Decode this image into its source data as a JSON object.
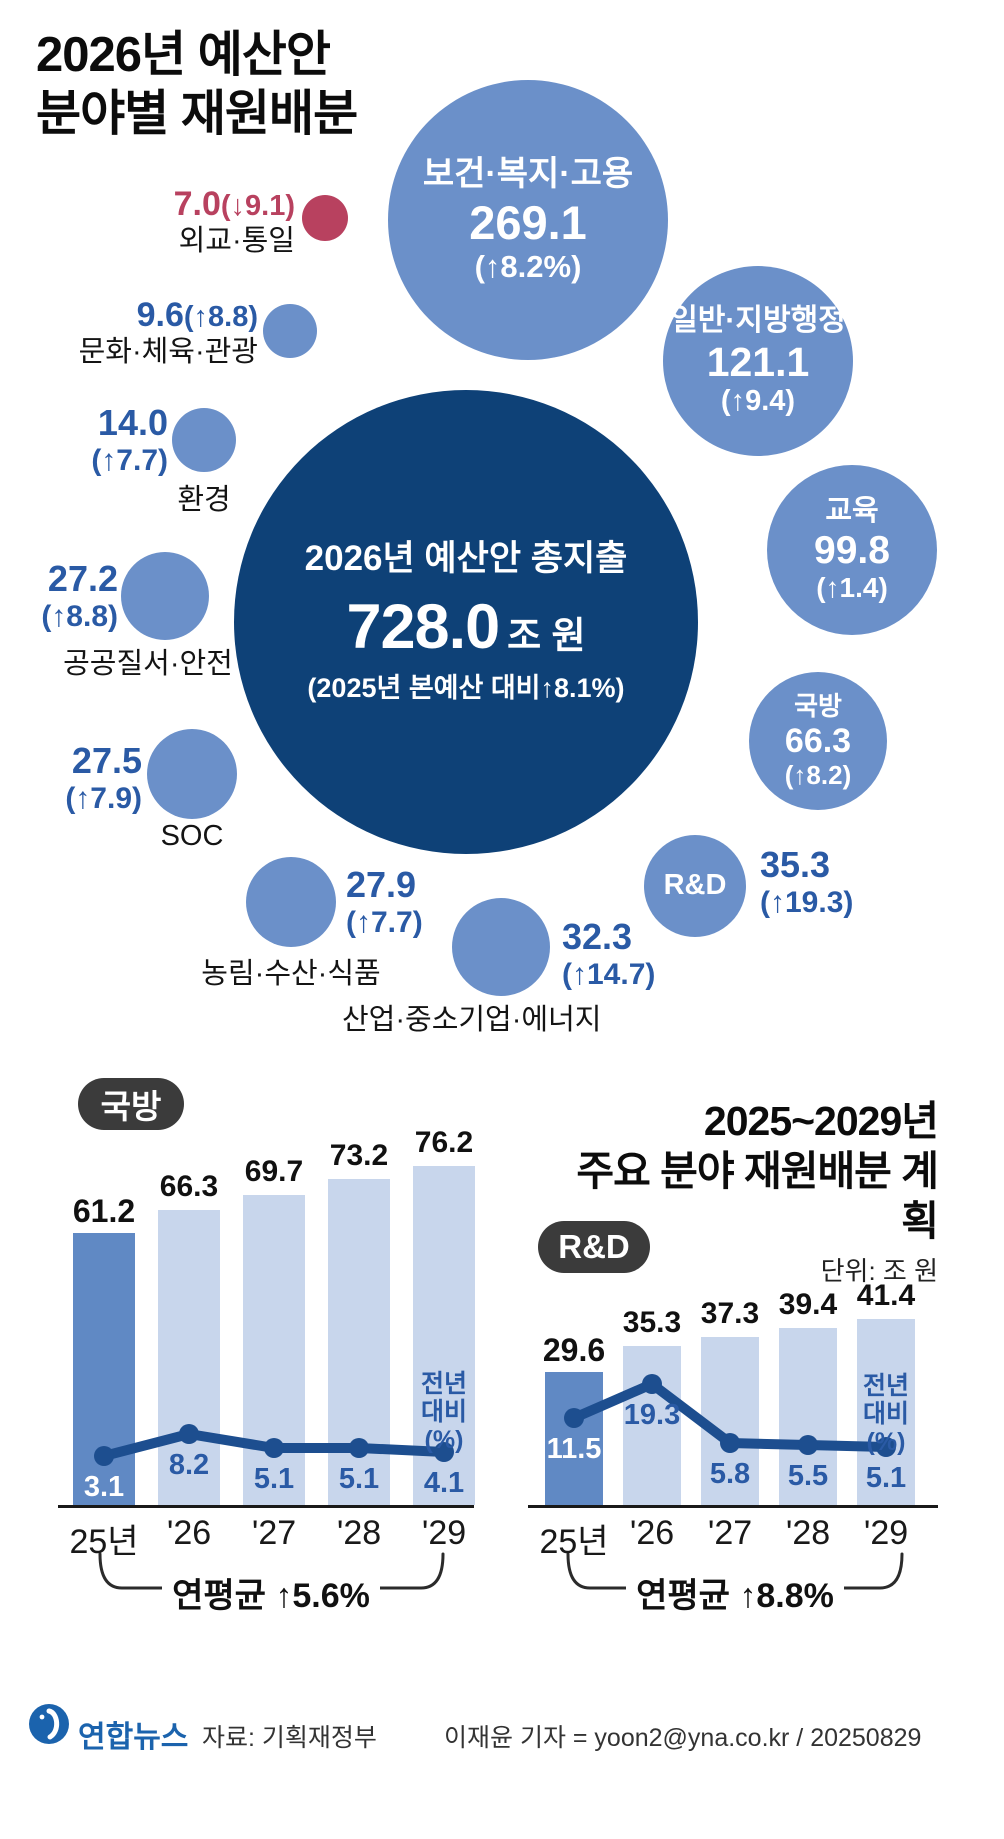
{
  "page": {
    "title_line1": "2026년 예산안",
    "title_line2": "분야별 재원배분"
  },
  "bubbles": {
    "center": {
      "name": "2026년 예산안 총지출",
      "value": "728.0",
      "unit": "조 원",
      "sub": "(2025년 본예산 대비↑8.1%)"
    },
    "items": [
      {
        "id": "welfare",
        "name": "보건·복지·고용",
        "value": "269.1",
        "change": "(↑8.2%)"
      },
      {
        "id": "general-admin",
        "name": "일반·지방행정",
        "value": "121.1",
        "change": "(↑9.4)"
      },
      {
        "id": "education",
        "name": "교육",
        "value": "99.8",
        "change": "(↑1.4)"
      },
      {
        "id": "defense",
        "name": "국방",
        "value": "66.3",
        "change": "(↑8.2)"
      },
      {
        "id": "rnd",
        "name": "R&D",
        "value": "35.3",
        "change": "(↑19.3)"
      },
      {
        "id": "industry",
        "name": "산업·중소기업·에너지",
        "value": "32.3",
        "change": "(↑14.7)"
      },
      {
        "id": "agriculture",
        "name": "농림·수산·식품",
        "value": "27.9",
        "change": "(↑7.7)"
      },
      {
        "id": "soc",
        "name": "SOC",
        "value": "27.5",
        "change": "(↑7.9)"
      },
      {
        "id": "public-order",
        "name": "공공질서·안전",
        "value": "27.2",
        "change": "(↑8.8)"
      },
      {
        "id": "environment",
        "name": "환경",
        "value": "14.0",
        "change": "(↑7.7)"
      },
      {
        "id": "culture",
        "name": "문화·체육·관광",
        "value": "9.6",
        "change": "(↑8.8)"
      },
      {
        "id": "diplomacy",
        "name": "외교·통일",
        "value": "7.0",
        "change": "(↓9.1)"
      }
    ]
  },
  "section2": {
    "title_line1": "2025~2029년",
    "title_line2": "주요 분야 재원배분 계획",
    "unit": "단위: 조 원"
  },
  "footer": {
    "agency": "연합뉴스",
    "source": "자료: 기획재정부",
    "credit": "이재윤 기자 = yoon2@yna.co.kr / 20250829"
  },
  "colors": {
    "bubble_blue": "#6b90c9",
    "center_navy": "#0e4177",
    "accent_red": "#b8415f",
    "num_blue": "#2a5aa5",
    "bar_dark": "#6089c4",
    "bar_light": "#c8d6ec",
    "line_blue": "#1d4e8f",
    "badge_bg": "#3b3b3b"
  },
  "chart_data": [
    {
      "type": "bubble",
      "title": "2026년 예산안 분야별 재원배분",
      "unit": "조 원",
      "center": {
        "label": "2026년 예산안 총지출",
        "value": 728.0,
        "change_pct": 8.1
      },
      "items": [
        {
          "label": "보건·복지·고용",
          "value": 269.1,
          "change_pct": 8.2
        },
        {
          "label": "일반·지방행정",
          "value": 121.1,
          "change_pct": 9.4
        },
        {
          "label": "교육",
          "value": 99.8,
          "change_pct": 1.4
        },
        {
          "label": "국방",
          "value": 66.3,
          "change_pct": 8.2
        },
        {
          "label": "R&D",
          "value": 35.3,
          "change_pct": 19.3
        },
        {
          "label": "산업·중소기업·에너지",
          "value": 32.3,
          "change_pct": 14.7
        },
        {
          "label": "농림·수산·식품",
          "value": 27.9,
          "change_pct": 7.7
        },
        {
          "label": "SOC",
          "value": 27.5,
          "change_pct": 7.9
        },
        {
          "label": "공공질서·안전",
          "value": 27.2,
          "change_pct": 8.8
        },
        {
          "label": "환경",
          "value": 14.0,
          "change_pct": 7.7
        },
        {
          "label": "문화·체육·관광",
          "value": 9.6,
          "change_pct": 8.8
        },
        {
          "label": "외교·통일",
          "value": 7.0,
          "change_pct": -9.1
        }
      ]
    },
    {
      "type": "bar",
      "title_badge": "국방",
      "categories": [
        "25년",
        "'26",
        "'27",
        "'28",
        "'29"
      ],
      "series": [
        {
          "name": "예산(조 원)",
          "kind": "bar",
          "values": [
            61.2,
            66.3,
            69.7,
            73.2,
            76.2
          ]
        },
        {
          "name": "전년 대비(%)",
          "kind": "line",
          "values": [
            3.1,
            8.2,
            5.1,
            5.1,
            4.1
          ]
        }
      ],
      "line_label_lines": [
        "전년",
        "대비",
        "(%)"
      ],
      "avg_note": "연평균 ↑5.6%"
    },
    {
      "type": "bar",
      "title_badge": "R&D",
      "categories": [
        "25년",
        "'26",
        "'27",
        "'28",
        "'29"
      ],
      "series": [
        {
          "name": "예산(조 원)",
          "kind": "bar",
          "values": [
            29.6,
            35.3,
            37.3,
            39.4,
            41.4
          ]
        },
        {
          "name": "전년 대비(%)",
          "kind": "line",
          "values": [
            11.5,
            19.3,
            5.8,
            5.5,
            5.1
          ]
        }
      ],
      "line_label_lines": [
        "전년",
        "대비",
        "(%)"
      ],
      "avg_note": "연평균 ↑8.8%"
    }
  ]
}
